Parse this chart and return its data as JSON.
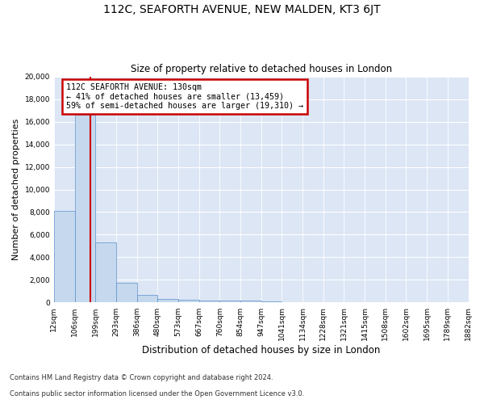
{
  "title": "112C, SEAFORTH AVENUE, NEW MALDEN, KT3 6JT",
  "subtitle": "Size of property relative to detached houses in London",
  "xlabel": "Distribution of detached houses by size in London",
  "ylabel": "Number of detached properties",
  "bar_values": [
    8100,
    16600,
    5300,
    1750,
    700,
    350,
    280,
    200,
    200,
    150,
    80,
    60,
    50,
    40,
    30,
    20,
    15,
    10,
    8,
    5
  ],
  "bar_color": "#c5d8ed",
  "bar_edge_color": "#5b8fc9",
  "x_labels": [
    "12sqm",
    "106sqm",
    "199sqm",
    "293sqm",
    "386sqm",
    "480sqm",
    "573sqm",
    "667sqm",
    "760sqm",
    "854sqm",
    "947sqm",
    "1041sqm",
    "1134sqm",
    "1228sqm",
    "1321sqm",
    "1415sqm",
    "1508sqm",
    "1602sqm",
    "1695sqm",
    "1789sqm",
    "1882sqm"
  ],
  "vline_x": 1.27,
  "vline_color": "#cc0000",
  "annotation_title": "112C SEAFORTH AVENUE: 130sqm",
  "annotation_line1": "← 41% of detached houses are smaller (13,459)",
  "annotation_line2": "59% of semi-detached houses are larger (19,310) →",
  "annotation_box_color": "#cc0000",
  "ylim": [
    0,
    20000
  ],
  "yticks": [
    0,
    2000,
    4000,
    6000,
    8000,
    10000,
    12000,
    14000,
    16000,
    18000,
    20000
  ],
  "footnote1": "Contains HM Land Registry data © Crown copyright and database right 2024.",
  "footnote2": "Contains public sector information licensed under the Open Government Licence v3.0.",
  "fig_facecolor": "#ffffff",
  "plot_bg_color": "#dce6f5"
}
